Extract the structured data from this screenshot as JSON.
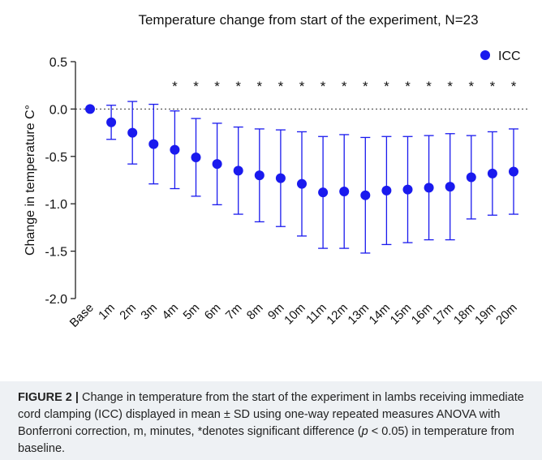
{
  "chart_data": {
    "type": "errorbar",
    "title": "Temperature change from start of the experiment, N=23",
    "y_label": "Change in temperature C°",
    "categories": [
      "Base",
      "1m",
      "2m",
      "3m",
      "4m",
      "5m",
      "6m",
      "7m",
      "8m",
      "9m",
      "10m",
      "11m",
      "12m",
      "13m",
      "14m",
      "15m",
      "16m",
      "17m",
      "18m",
      "19m",
      "20m"
    ],
    "series": [
      {
        "name": "ICC",
        "color": "#1a1aee",
        "values": [
          0,
          -0.14,
          -0.25,
          -0.37,
          -0.43,
          -0.51,
          -0.58,
          -0.65,
          -0.7,
          -0.73,
          -0.79,
          -0.88,
          -0.87,
          -0.91,
          -0.86,
          -0.85,
          -0.83,
          -0.82,
          -0.72,
          -0.68,
          -0.66
        ],
        "errors": [
          0,
          0.18,
          0.33,
          0.42,
          0.41,
          0.41,
          0.43,
          0.46,
          0.49,
          0.51,
          0.55,
          0.59,
          0.6,
          0.61,
          0.57,
          0.56,
          0.55,
          0.56,
          0.44,
          0.44,
          0.45
        ]
      }
    ],
    "significance": [
      null,
      null,
      null,
      null,
      "*",
      "*",
      "*",
      "*",
      "*",
      "*",
      "*",
      "*",
      "*",
      "*",
      "*",
      "*",
      "*",
      "*",
      "*",
      "*",
      "*"
    ],
    "reference_line": 0,
    "ylim": [
      -2.0,
      0.5
    ],
    "yticks": [
      0.5,
      {
        "value": 0,
        "label": "0.0"
      },
      -0.5,
      {
        "value": -1,
        "label": "-1.0"
      },
      -1.5,
      {
        "value": -2,
        "label": "-2.0"
      }
    ],
    "legend": "upper right"
  },
  "caption": {
    "label": "FIGURE 2 |",
    "text_1": " Change in temperature from the start of the experiment in lambs receiving immediate cord clamping (ICC) displayed in mean ± SD using one-way repeated measures ANOVA with Bonferroni correction, m, minutes, *denotes significant difference (",
    "italic": "p",
    "text_2": " < 0.05) in temperature from baseline."
  }
}
